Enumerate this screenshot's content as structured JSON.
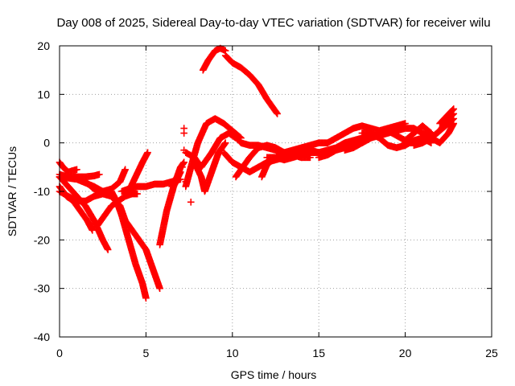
{
  "chart_data": {
    "type": "scatter",
    "title": "Day 008 of 2025, Sidereal Day-to-day VTEC variation (SDTVAR) for receiver wilu",
    "xlabel": "GPS time / hours",
    "ylabel": "SDTVAR / TECUs",
    "xlim": [
      0,
      25
    ],
    "ylim": [
      -40,
      20
    ],
    "xticks": [
      0,
      5,
      10,
      15,
      20,
      25
    ],
    "yticks": [
      -40,
      -30,
      -20,
      -10,
      0,
      10,
      20
    ],
    "grid": true,
    "marker": "plus",
    "color": "#ff0000",
    "series": [
      {
        "x": [
          0.0,
          0.5,
          1.0,
          1.5,
          2.0,
          2.5,
          2.8
        ],
        "y": [
          -7,
          -9,
          -11,
          -13,
          -16,
          -20,
          -22
        ]
      },
      {
        "x": [
          0.0,
          0.4,
          0.8,
          1.2,
          1.6,
          1.9
        ],
        "y": [
          -9,
          -11,
          -12,
          -14,
          -16,
          -18
        ]
      },
      {
        "x": [
          0.0,
          1.0,
          2.0,
          3.0,
          3.5,
          3.8,
          4.2,
          4.6,
          5.0,
          5.4,
          5.8
        ],
        "y": [
          -7,
          -7.5,
          -9,
          -11,
          -13,
          -16,
          -18,
          -20,
          -22,
          -26,
          -30
        ]
      },
      {
        "x": [
          0.0,
          0.5,
          1.0,
          1.5,
          2.0,
          2.5,
          3.0
        ],
        "y": [
          -10,
          -11,
          -12,
          -12,
          -11,
          -10.5,
          -11
        ]
      },
      {
        "x": [
          0.0,
          0.2,
          0.5,
          1.0
        ],
        "y": [
          -4,
          -5,
          -6,
          -5.5
        ]
      },
      {
        "x": [
          0.0,
          0.5,
          1.0,
          1.5,
          2.0,
          2.3
        ],
        "y": [
          -6.5,
          -7,
          -7,
          -7,
          -6.8,
          -6.5
        ]
      },
      {
        "x": [
          1.5,
          2.0,
          2.5,
          3.0,
          3.5,
          3.8
        ],
        "y": [
          -8,
          -9.5,
          -10,
          -9.5,
          -8,
          -5.5
        ]
      },
      {
        "x": [
          3.0,
          3.3,
          3.6,
          4.0,
          4.4,
          4.8,
          5.0
        ],
        "y": [
          -10,
          -12,
          -15,
          -20,
          -25,
          -29,
          -32
        ]
      },
      {
        "x": [
          2.2,
          2.6,
          3.0,
          3.4,
          3.8,
          4.2,
          4.5
        ],
        "y": [
          -17,
          -15,
          -13,
          -12,
          -11,
          -10.5,
          -10.5
        ]
      },
      {
        "x": [
          4.0,
          4.4,
          4.8,
          5.1
        ],
        "y": [
          -10,
          -7,
          -4,
          -2
        ]
      },
      {
        "x": [
          3.6,
          4.0,
          4.5,
          5.0,
          5.5,
          6.0,
          6.5,
          7.0
        ],
        "y": [
          -10,
          -9.5,
          -9,
          -9,
          -8.5,
          -8.5,
          -8,
          -7.5
        ]
      },
      {
        "x": [
          5.8,
          6.2,
          6.6,
          7.0
        ],
        "y": [
          -21,
          -14,
          -9,
          -6
        ]
      },
      {
        "x": [
          6.5,
          6.8,
          7.0,
          7.2
        ],
        "y": [
          -9,
          -7,
          -5,
          -4
        ]
      },
      {
        "x": [
          7.3,
          7.6,
          8.0,
          8.5,
          9.0,
          9.5,
          10.0,
          10.5
        ],
        "y": [
          -9,
          -5,
          0,
          4,
          5,
          4,
          2.5,
          1
        ]
      },
      {
        "x": [
          7.3,
          7.8,
          8.2,
          8.8,
          9.3,
          9.8,
          10.2
        ],
        "y": [
          -2,
          -3,
          -5,
          -2,
          1,
          2,
          1
        ]
      },
      {
        "x": [
          7.8,
          8.2,
          8.4,
          8.8,
          9.2,
          9.6
        ],
        "y": [
          -4,
          -7,
          -10,
          -6,
          -2,
          0
        ]
      },
      {
        "x": [
          8.3,
          8.6,
          9.0,
          9.3,
          9.6
        ],
        "y": [
          15,
          17,
          19,
          19.5,
          19
        ]
      },
      {
        "x": [
          9.6,
          10.0,
          10.5,
          11.0,
          11.5,
          12.0,
          12.6
        ],
        "y": [
          18,
          16.5,
          15.5,
          14,
          12,
          9,
          6
        ]
      },
      {
        "x": [
          10.0,
          10.5,
          11.0,
          11.5,
          12.0,
          12.5,
          13.0,
          13.5,
          14.0,
          14.5,
          15.0
        ],
        "y": [
          2,
          0,
          -0.5,
          -0.5,
          -1,
          -1.5,
          -2,
          -2,
          -1.5,
          -1.5,
          -2
        ]
      },
      {
        "x": [
          9.5,
          10.0,
          10.5,
          11.0,
          11.5,
          12.0,
          12.5,
          13.0,
          13.5,
          14.0
        ],
        "y": [
          -2,
          -4,
          -5,
          -6,
          -5,
          -4,
          -3.5,
          -3,
          -2.5,
          -3
        ]
      },
      {
        "x": [
          10.2,
          10.6,
          11.0,
          11.5,
          12.0,
          12.5,
          13.0,
          13.5,
          14.0,
          14.5
        ],
        "y": [
          -7,
          -5,
          -3,
          -1,
          -0.5,
          -1,
          -2,
          -2.5,
          -3,
          -3
        ]
      },
      {
        "x": [
          11.7,
          12.0,
          12.5,
          13.0,
          13.5,
          14.0,
          14.5,
          15.0,
          15.5
        ],
        "y": [
          -7,
          -4.5,
          -3,
          -2,
          -1.5,
          -1,
          -0.5,
          0,
          0
        ]
      },
      {
        "x": [
          12.0,
          12.5,
          13.0,
          13.5,
          14.0,
          14.5,
          15.0,
          15.5,
          16.0,
          16.5,
          17.0,
          17.5,
          18.0
        ],
        "y": [
          -3,
          -3,
          -3.5,
          -3,
          -2.5,
          -2,
          -2,
          -1.5,
          -1,
          0,
          0.5,
          1,
          2
        ]
      },
      {
        "x": [
          15.0,
          15.5,
          16.0,
          16.5,
          17.0,
          17.5,
          18.0,
          18.5,
          19.0,
          19.5,
          20.0,
          20.5,
          21.0,
          21.5,
          22.0,
          22.5,
          22.8
        ],
        "y": [
          -3,
          -2.5,
          -1.5,
          -1,
          -0.5,
          0,
          1,
          1.5,
          2,
          2.5,
          3,
          3,
          2,
          1,
          0,
          2,
          4
        ]
      },
      {
        "x": [
          15.5,
          16.0,
          16.5,
          17.0,
          17.5,
          18.0,
          18.5,
          19.0,
          19.5,
          20.0
        ],
        "y": [
          0,
          1,
          2,
          3,
          3.5,
          3,
          2.5,
          3,
          3.5,
          4
        ]
      },
      {
        "x": [
          16.5,
          17.0,
          17.5,
          18.0,
          18.5,
          19.0,
          19.5,
          20.0,
          20.5,
          21.0,
          21.5
        ],
        "y": [
          -1.5,
          -1,
          0,
          1,
          2,
          2.5,
          1.5,
          0.5,
          2,
          3.5,
          2
        ]
      },
      {
        "x": [
          17.5,
          18.0,
          18.5,
          19.0,
          19.5,
          20.0,
          20.5,
          21.0,
          21.5
        ],
        "y": [
          2,
          2,
          1,
          -0.5,
          -1,
          -0.5,
          0.5,
          1,
          0
        ]
      },
      {
        "x": [
          20.0,
          20.5,
          21.0,
          21.5,
          22.0,
          22.5,
          22.8
        ],
        "y": [
          0,
          0,
          0.5,
          1,
          2.5,
          4,
          5
        ]
      },
      {
        "x": [
          20.5,
          21.0,
          21.5,
          22.0,
          22.5,
          22.8
        ],
        "y": [
          -0.5,
          0,
          1,
          2.5,
          5,
          6
        ]
      },
      {
        "x": [
          22.0,
          22.4,
          22.8
        ],
        "y": [
          4,
          5.5,
          7
        ]
      }
    ],
    "isolated_points": [
      {
        "x": 7.2,
        "y": 3
      },
      {
        "x": 7.2,
        "y": 2
      },
      {
        "x": 7.2,
        "y": -1.5
      },
      {
        "x": 7.1,
        "y": -5
      },
      {
        "x": 7.6,
        "y": -12.2
      },
      {
        "x": 7.3,
        "y": -8
      }
    ]
  }
}
